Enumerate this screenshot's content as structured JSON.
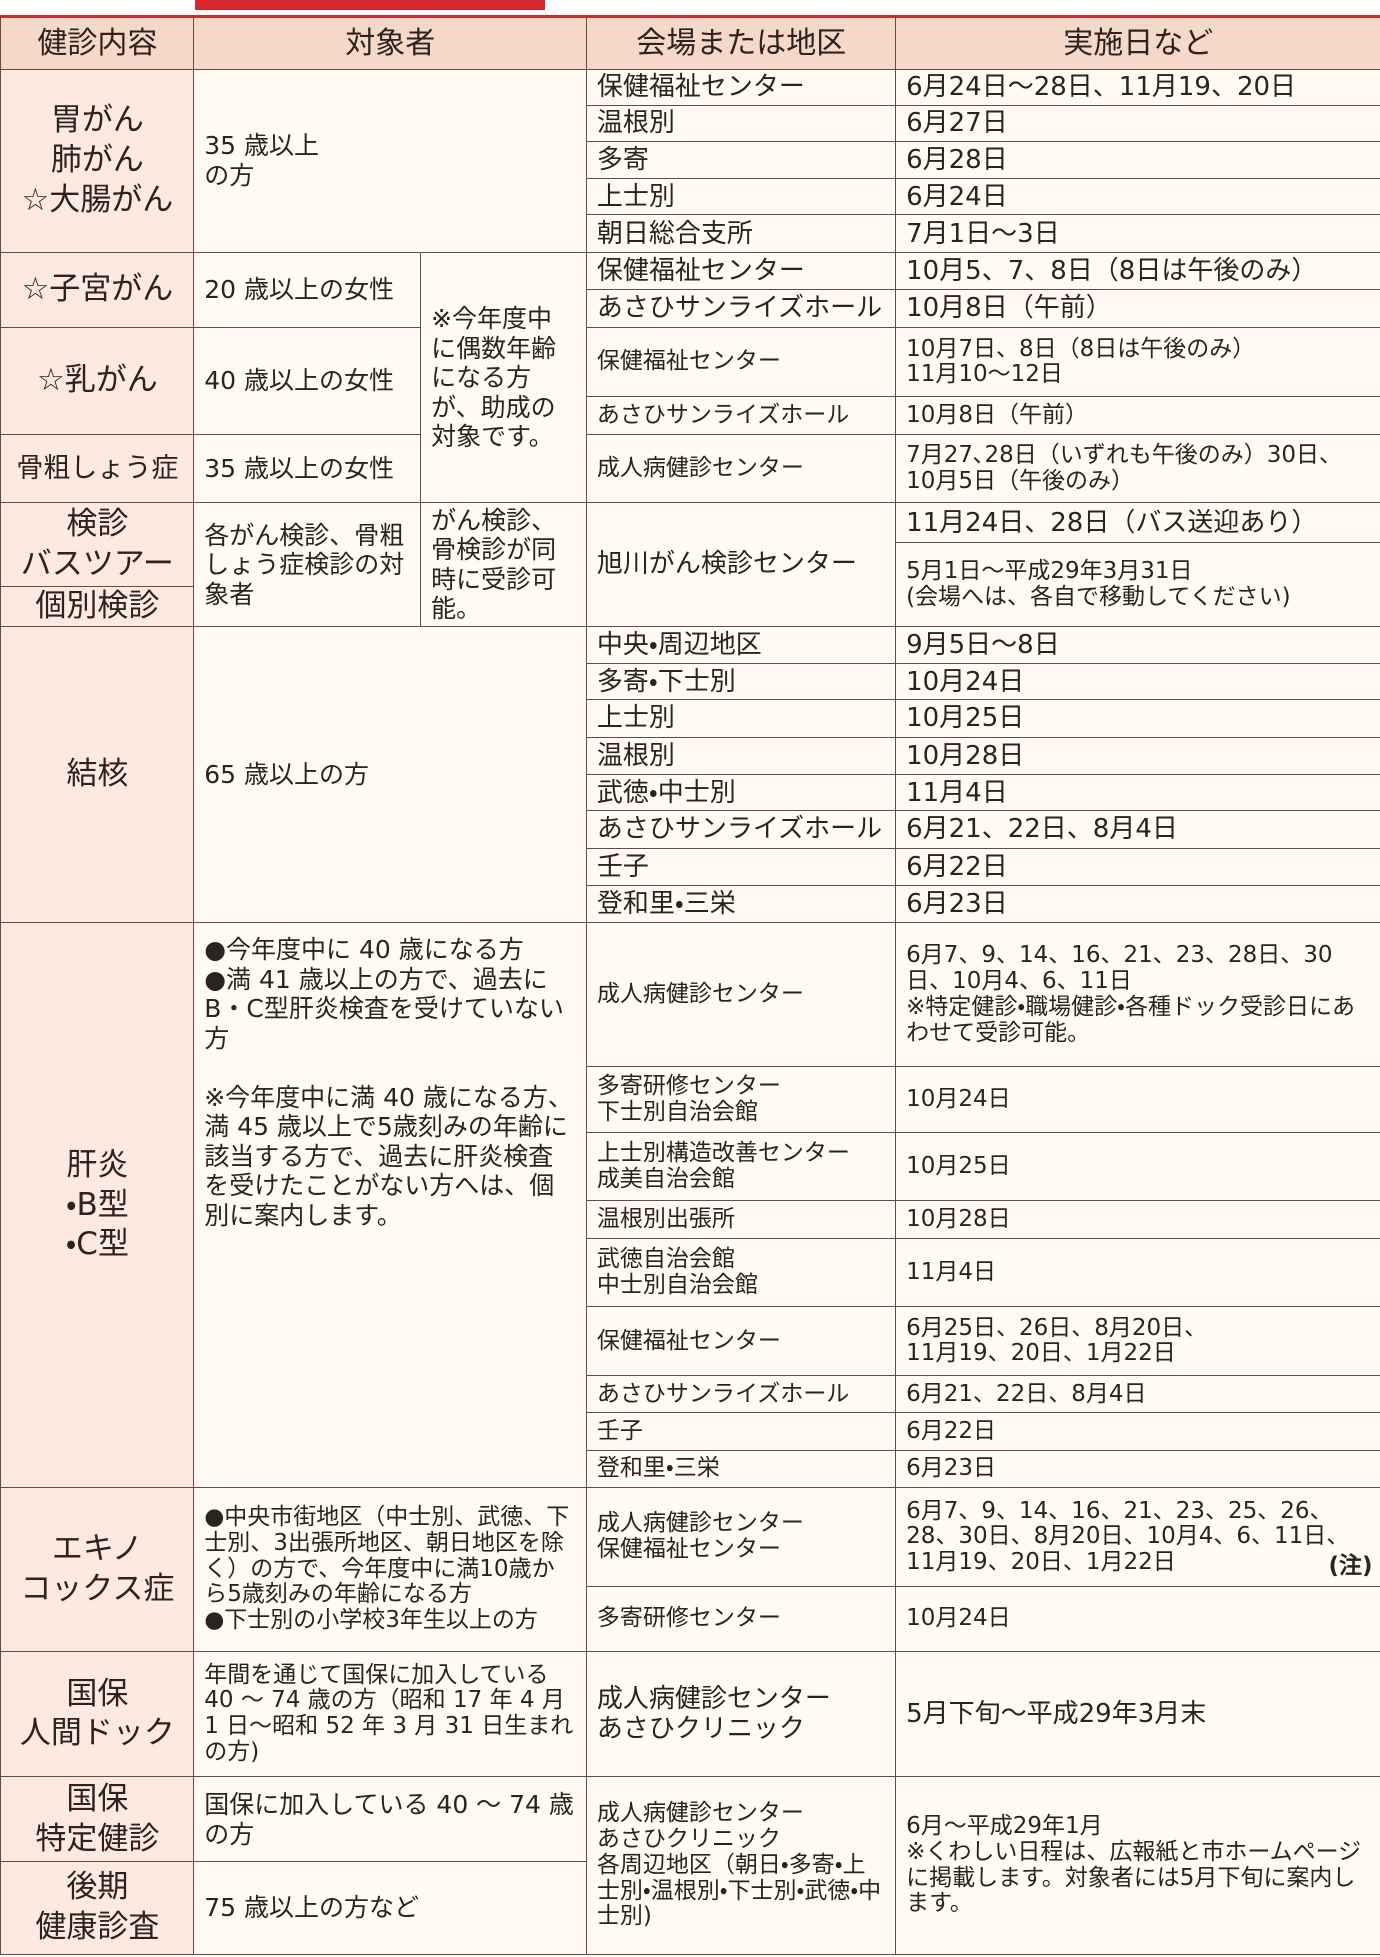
{
  "header": [
    "健診内容",
    "対象者",
    "会場または地区",
    "実施日など"
  ],
  "even_age_note": "※今年度中に偶数年齢になる方が、助成の対象です。",
  "blocks": [
    {
      "exam": "胃がん\n肺がん\n☆大腸がん",
      "target": "35 歳以上\nの方",
      "venues": [
        [
          "保健福祉センター",
          "6月24日～28日、11月19、20日"
        ],
        [
          "温根別",
          "6月27日"
        ],
        [
          "多寄",
          "6月28日"
        ],
        [
          "上士別",
          "6月24日"
        ],
        [
          "朝日総合支所",
          "7月1日～3日"
        ]
      ]
    },
    {
      "exam": "☆子宮がん",
      "target": "20 歳以上の女性",
      "venues": [
        [
          "保健福祉センター",
          "10月5、7、8日（8日は午後のみ）"
        ],
        [
          "あさひサンライズホール",
          "10月8日（午前）"
        ]
      ]
    },
    {
      "exam": "☆乳がん",
      "target": "40 歳以上の女性",
      "venues": [
        [
          "保健福祉センター",
          "10月7日、8日（8日は午後のみ）\n11月10～12日"
        ],
        [
          "あさひサンライズホール",
          "10月8日（午前）"
        ]
      ]
    },
    {
      "exam": "骨粗しょう症",
      "target": "35 歳以上の女性",
      "venues": [
        [
          "成人病健診センター",
          "7月27､28日（いずれも午後のみ）30日、\n10月5日（午後のみ）"
        ]
      ]
    },
    {
      "exam": "検診\nバスツアー",
      "target": "各がん検診、骨粗しょう症検診の対象者",
      "target_note": "がん検診、骨検診が同時に受診可能。",
      "venues": [
        [
          "旭川がん検診センター",
          "11月24日、28日（バス送迎あり）"
        ]
      ]
    },
    {
      "exam": "個別検診",
      "date": "5月1日～平成29年3月31日\n(会場へは、各自で移動してください)"
    },
    {
      "exam": "結核",
      "target": "65 歳以上の方",
      "venues": [
        [
          "中央・周辺地区",
          "9月5日～8日"
        ],
        [
          "多寄・下士別",
          "10月24日"
        ],
        [
          "上士別",
          "10月25日"
        ],
        [
          "温根別",
          "10月28日"
        ],
        [
          "武徳・中士別",
          "11月4日"
        ],
        [
          "あさひサンライズホール",
          "6月21、22日、8月4日"
        ],
        [
          "壬子",
          "6月22日"
        ],
        [
          "登和里・三栄",
          "6月23日"
        ]
      ]
    },
    {
      "exam": "肝炎\n・B型\n・C型",
      "target": "●今年度中に 40 歳になる方\n●満 41 歳以上の方で、過去にB・C型肝炎検査を受けていない方\n\n※今年度中に満 40 歳になる方、満 45 歳以上で5歳刻みの年齢に該当する方で、過去に肝炎検査を受けたことがない方へは、個別に案内します。",
      "venues": [
        [
          "成人病健診センター",
          "6月7、9、14、16、21、23、28日、30日、10月4、6、11日\n※特定健診・職場健診・各種ドック受診日にあわせて受診可能。"
        ],
        [
          "多寄研修センター\n下士別自治会館",
          "10月24日"
        ],
        [
          "上士別構造改善センター\n成美自治会館",
          "10月25日"
        ],
        [
          "温根別出張所",
          "10月28日"
        ],
        [
          "武徳自治会館\n中士別自治会館",
          "11月4日"
        ],
        [
          "保健福祉センター",
          "6月25日、26日、8月20日、\n11月19、20日、1月22日"
        ],
        [
          "あさひサンライズホール",
          "6月21、22日、8月4日"
        ],
        [
          "壬子",
          "6月22日"
        ],
        [
          "登和里・三栄",
          "6月23日"
        ]
      ]
    },
    {
      "exam": "エキノ\nコックス症",
      "target": "●中央市街地区（中士別、武徳、下士別、3出張所地区、朝日地区を除く）の方で、今年度中に満10歳から5歳刻みの年齢になる方\n●下士別の小学校3年生以上の方",
      "venues": [
        [
          "成人病健診センター\n保健福祉センター",
          "6月7、9、14、16、21、23、25、26、28、30日、8月20日、10月4、6、11日、11月19、20日、1月22日"
        ],
        [
          "多寄研修センター",
          "10月24日"
        ]
      ],
      "note": "(注)"
    },
    {
      "exam": "国保\n人間ドック",
      "target": "年間を通じて国保に加入している 40 ～ 74 歳の方（昭和 17 年 4 月 1 日～昭和 52 年 3 月 31 日生まれの方)",
      "venues": [
        [
          "成人病健診センター\nあさひクリニック",
          "5月下旬～平成29年3月末"
        ]
      ]
    },
    {
      "exam": "国保\n特定健診",
      "target": "国保に加入している 40 ～ 74 歳の方",
      "venues": [
        [
          "成人病健診センター\nあさひクリニック\n各周辺地区（朝日・多寄・上士別・温根別・下士別・武徳・中士別)",
          "6月～平成29年1月\n※くわしい日程は、広報紙と市ホームページに掲載します。対象者には5月下旬に案内します。"
        ]
      ]
    },
    {
      "exam": "後期\n健康診査",
      "target": "75 歳以上の方など"
    }
  ]
}
